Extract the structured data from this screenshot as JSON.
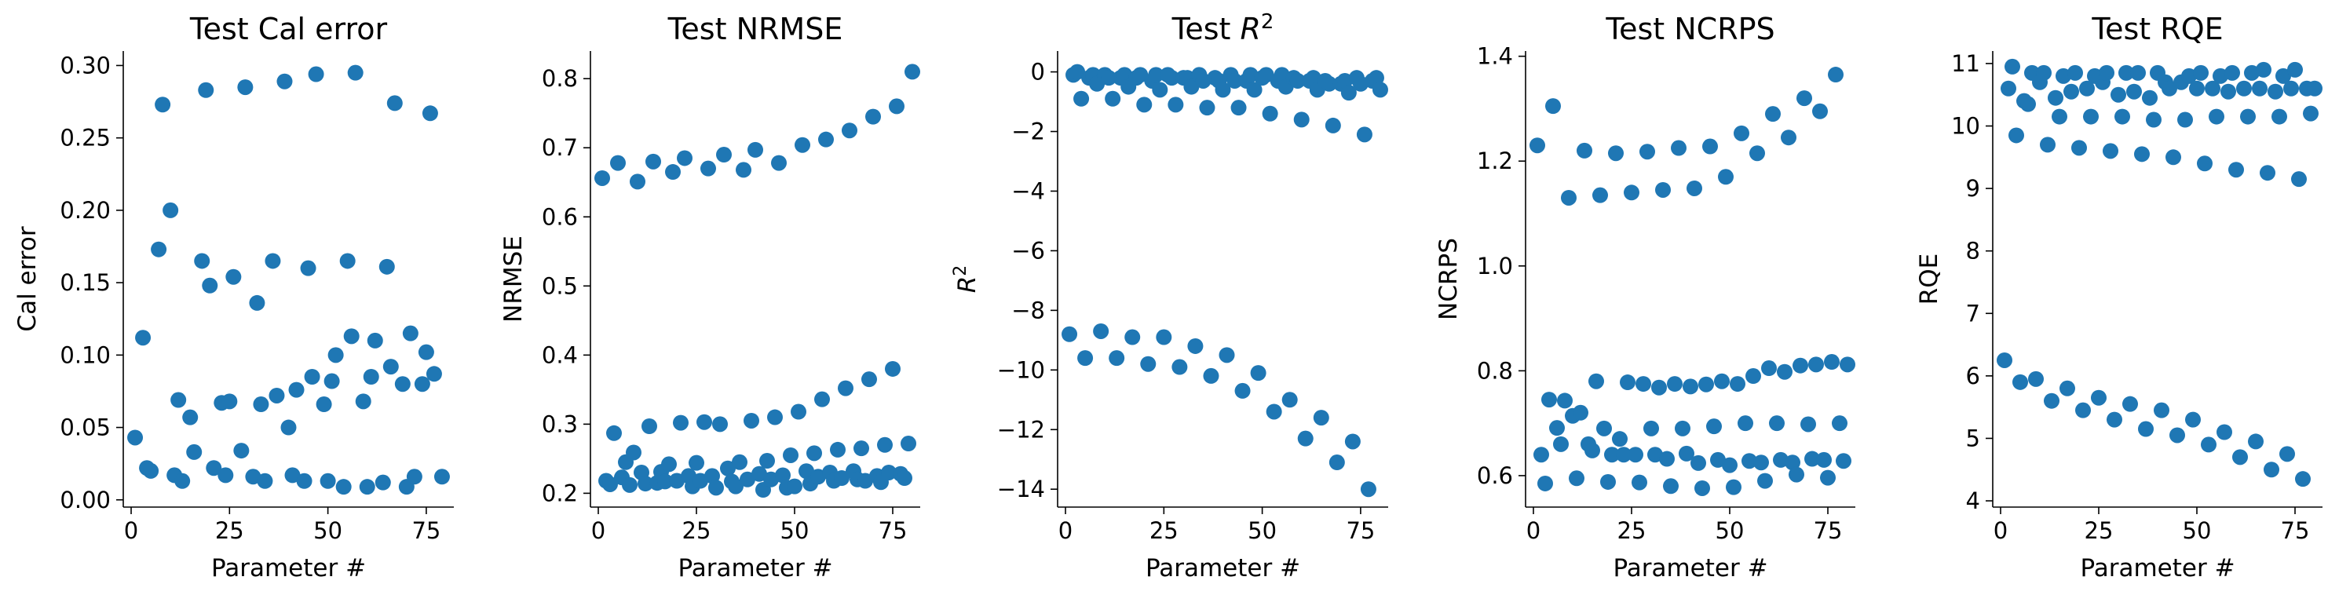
{
  "marker_color": "#1f77b4",
  "chart_data": [
    {
      "type": "scatter",
      "title": "Test Cal error",
      "xlabel": "Parameter #",
      "ylabel": "Cal error",
      "xlim": [
        -2,
        82
      ],
      "ylim": [
        -0.005,
        0.31
      ],
      "xticks": [
        0,
        25,
        50,
        75
      ],
      "xtick_labels": [
        "0",
        "25",
        "50",
        "75"
      ],
      "yticks": [
        0.0,
        0.05,
        0.1,
        0.15,
        0.2,
        0.25,
        0.3
      ],
      "ytick_labels": [
        "0.00",
        "0.05",
        "0.10",
        "0.15",
        "0.20",
        "0.25",
        "0.30"
      ],
      "series": [
        {
          "x": [
            1,
            3,
            4,
            5,
            7,
            8,
            10,
            11,
            12,
            13,
            15,
            16,
            18,
            19,
            20,
            21,
            23,
            24,
            25,
            26,
            28,
            29,
            31,
            32,
            33,
            34,
            36,
            37,
            39,
            40,
            41,
            42,
            44,
            45,
            46,
            47,
            49,
            50,
            51,
            52,
            54,
            55,
            56,
            57,
            59,
            60,
            61,
            62,
            64,
            65,
            66,
            67,
            69,
            70,
            71,
            72,
            74,
            75,
            76,
            77,
            79
          ],
          "y": [
            0.043,
            0.112,
            0.022,
            0.02,
            0.173,
            0.273,
            0.2,
            0.017,
            0.069,
            0.013,
            0.057,
            0.033,
            0.165,
            0.283,
            0.148,
            0.022,
            0.067,
            0.017,
            0.068,
            0.154,
            0.034,
            0.285,
            0.016,
            0.136,
            0.066,
            0.013,
            0.165,
            0.072,
            0.289,
            0.05,
            0.017,
            0.076,
            0.013,
            0.16,
            0.085,
            0.294,
            0.066,
            0.013,
            0.082,
            0.1,
            0.009,
            0.165,
            0.113,
            0.295,
            0.068,
            0.009,
            0.085,
            0.11,
            0.012,
            0.161,
            0.092,
            0.274,
            0.08,
            0.009,
            0.115,
            0.016,
            0.08,
            0.102,
            0.267,
            0.087,
            0.016
          ]
        }
      ]
    },
    {
      "type": "scatter",
      "title": "Test NRMSE",
      "xlabel": "Parameter #",
      "ylabel": "NRMSE",
      "xlim": [
        -2,
        82
      ],
      "ylim": [
        0.18,
        0.84
      ],
      "xticks": [
        0,
        25,
        50,
        75
      ],
      "xtick_labels": [
        "0",
        "25",
        "50",
        "75"
      ],
      "yticks": [
        0.2,
        0.3,
        0.4,
        0.5,
        0.6,
        0.7,
        0.8
      ],
      "ytick_labels": [
        "0.2",
        "0.3",
        "0.4",
        "0.5",
        "0.6",
        "0.7",
        "0.8"
      ],
      "series": [
        {
          "x": [
            1,
            2,
            3,
            4,
            5,
            6,
            7,
            8,
            9,
            10,
            11,
            12,
            13,
            14,
            15,
            16,
            17,
            18,
            19,
            20,
            21,
            22,
            23,
            24,
            25,
            26,
            27,
            28,
            29,
            30,
            31,
            32,
            33,
            34,
            35,
            36,
            37,
            38,
            39,
            40,
            41,
            42,
            43,
            44,
            45,
            46,
            47,
            48,
            49,
            50,
            51,
            52,
            53,
            54,
            55,
            56,
            57,
            58,
            59,
            60,
            61,
            62,
            63,
            64,
            65,
            66,
            67,
            68,
            69,
            70,
            71,
            72,
            73,
            74,
            75,
            76,
            77,
            78,
            79,
            80
          ],
          "y": [
            0.656,
            0.218,
            0.213,
            0.287,
            0.678,
            0.223,
            0.245,
            0.212,
            0.259,
            0.651,
            0.23,
            0.214,
            0.297,
            0.68,
            0.215,
            0.231,
            0.217,
            0.242,
            0.665,
            0.218,
            0.302,
            0.685,
            0.225,
            0.21,
            0.244,
            0.218,
            0.303,
            0.67,
            0.225,
            0.208,
            0.3,
            0.69,
            0.236,
            0.217,
            0.21,
            0.245,
            0.668,
            0.22,
            0.305,
            0.697,
            0.228,
            0.205,
            0.247,
            0.22,
            0.31,
            0.678,
            0.226,
            0.208,
            0.255,
            0.21,
            0.318,
            0.704,
            0.232,
            0.214,
            0.258,
            0.224,
            0.336,
            0.712,
            0.23,
            0.218,
            0.263,
            0.222,
            0.352,
            0.725,
            0.232,
            0.22,
            0.265,
            0.218,
            0.365,
            0.745,
            0.225,
            0.216,
            0.27,
            0.23,
            0.38,
            0.76,
            0.228,
            0.222,
            0.272,
            0.81
          ]
        }
      ]
    },
    {
      "type": "scatter",
      "title": "Test R²",
      "title_html": "Test <i>R</i>²",
      "xlabel": "Parameter #",
      "ylabel": "R²",
      "xlim": [
        -2,
        82
      ],
      "ylim": [
        -14.6,
        0.7
      ],
      "xticks": [
        0,
        25,
        50,
        75
      ],
      "xtick_labels": [
        "0",
        "25",
        "50",
        "75"
      ],
      "yticks": [
        -14,
        -12,
        -10,
        -8,
        -6,
        -4,
        -2,
        0
      ],
      "ytick_labels": [
        "−14",
        "−12",
        "−10",
        "−8",
        "−6",
        "−4",
        "−2",
        "0"
      ],
      "series": [
        {
          "x": [
            1,
            2,
            3,
            4,
            5,
            6,
            7,
            8,
            9,
            10,
            11,
            12,
            13,
            14,
            15,
            16,
            17,
            18,
            19,
            20,
            21,
            22,
            23,
            24,
            25,
            26,
            27,
            28,
            29,
            30,
            31,
            32,
            33,
            34,
            35,
            36,
            37,
            38,
            39,
            40,
            41,
            42,
            43,
            44,
            45,
            46,
            47,
            48,
            49,
            50,
            51,
            52,
            53,
            54,
            55,
            56,
            57,
            58,
            59,
            60,
            61,
            62,
            63,
            64,
            65,
            66,
            67,
            68,
            69,
            70,
            71,
            72,
            73,
            74,
            75,
            76,
            77,
            78,
            79,
            80
          ],
          "y": [
            -8.8,
            -0.1,
            0.0,
            -0.9,
            -9.6,
            -0.2,
            -0.1,
            -0.4,
            -8.7,
            -0.1,
            -0.2,
            -0.9,
            -9.6,
            -0.2,
            -0.1,
            -0.5,
            -8.9,
            -0.2,
            -0.1,
            -1.1,
            -9.8,
            -0.3,
            -0.1,
            -0.6,
            -8.9,
            -0.1,
            -0.2,
            -1.1,
            -9.9,
            -0.2,
            -0.2,
            -0.5,
            -9.2,
            -0.1,
            -0.3,
            -1.2,
            -10.2,
            -0.2,
            -0.3,
            -0.6,
            -9.5,
            -0.1,
            -0.3,
            -1.2,
            -10.7,
            -0.3,
            -0.1,
            -0.6,
            -10.1,
            -0.2,
            -0.1,
            -1.4,
            -11.4,
            -0.3,
            -0.1,
            -0.5,
            -11.0,
            -0.2,
            -0.3,
            -1.6,
            -12.3,
            -0.3,
            -0.2,
            -0.6,
            -11.6,
            -0.3,
            -0.4,
            -1.8,
            -13.1,
            -0.4,
            -0.3,
            -0.7,
            -12.4,
            -0.2,
            -0.4,
            -2.1,
            -14.0,
            -0.3,
            -0.2,
            -0.6
          ]
        }
      ]
    },
    {
      "type": "scatter",
      "title": "Test NCRPS",
      "xlabel": "Parameter #",
      "ylabel": "NCRPS",
      "xlim": [
        -2,
        82
      ],
      "ylim": [
        0.54,
        1.41
      ],
      "xticks": [
        0,
        25,
        50,
        75
      ],
      "xtick_labels": [
        "0",
        "25",
        "50",
        "75"
      ],
      "yticks": [
        0.6,
        0.8,
        1.0,
        1.2,
        1.4
      ],
      "ytick_labels": [
        "0.6",
        "0.8",
        "1.0",
        "1.2",
        "1.4"
      ],
      "series": [
        {
          "x": [
            1,
            2,
            3,
            4,
            5,
            6,
            7,
            8,
            9,
            10,
            11,
            12,
            13,
            14,
            15,
            16,
            17,
            18,
            19,
            20,
            21,
            22,
            23,
            24,
            25,
            26,
            27,
            28,
            29,
            30,
            31,
            32,
            33,
            34,
            35,
            36,
            37,
            38,
            39,
            40,
            41,
            42,
            43,
            44,
            45,
            46,
            47,
            48,
            49,
            50,
            51,
            52,
            53,
            54,
            55,
            56,
            57,
            58,
            59,
            60,
            61,
            62,
            63,
            64,
            65,
            66,
            67,
            68,
            69,
            70,
            71,
            72,
            73,
            74,
            75,
            76,
            77,
            78,
            79,
            80
          ],
          "y": [
            1.23,
            0.64,
            0.585,
            0.745,
            1.305,
            0.691,
            0.66,
            0.743,
            1.13,
            0.714,
            0.595,
            0.72,
            1.22,
            0.66,
            0.648,
            0.78,
            1.135,
            0.69,
            0.588,
            0.64,
            1.215,
            0.67,
            0.64,
            0.778,
            1.14,
            0.64,
            0.587,
            0.775,
            1.218,
            0.69,
            0.64,
            0.768,
            1.145,
            0.632,
            0.58,
            0.775,
            1.225,
            0.69,
            0.642,
            0.77,
            1.148,
            0.624,
            0.576,
            0.774,
            1.228,
            0.694,
            0.63,
            0.78,
            1.17,
            0.62,
            0.578,
            0.775,
            1.253,
            0.7,
            0.628,
            0.79,
            1.215,
            0.625,
            0.59,
            0.805,
            1.29,
            0.7,
            0.63,
            0.798,
            1.245,
            0.625,
            0.602,
            0.81,
            1.32,
            0.698,
            0.632,
            0.812,
            1.295,
            0.63,
            0.596,
            0.817,
            1.365,
            0.7,
            0.628,
            0.812
          ]
        }
      ]
    },
    {
      "type": "scatter",
      "title": "Test RQE",
      "xlabel": "Parameter #",
      "ylabel": "RQE",
      "xlim": [
        -2,
        82
      ],
      "ylim": [
        3.9,
        11.2
      ],
      "xticks": [
        0,
        25,
        50,
        75
      ],
      "xtick_labels": [
        "0",
        "25",
        "50",
        "75"
      ],
      "yticks": [
        4,
        5,
        6,
        7,
        8,
        9,
        10,
        11
      ],
      "ytick_labels": [
        "4",
        "5",
        "6",
        "7",
        "8",
        "9",
        "10",
        "11"
      ],
      "series": [
        {
          "x": [
            1,
            2,
            3,
            4,
            5,
            6,
            7,
            8,
            9,
            10,
            11,
            12,
            13,
            14,
            15,
            16,
            17,
            18,
            19,
            20,
            21,
            22,
            23,
            24,
            25,
            26,
            27,
            28,
            29,
            30,
            31,
            32,
            33,
            34,
            35,
            36,
            37,
            38,
            39,
            40,
            41,
            42,
            43,
            44,
            45,
            46,
            47,
            48,
            49,
            50,
            51,
            52,
            53,
            54,
            55,
            56,
            57,
            58,
            59,
            60,
            61,
            62,
            63,
            64,
            65,
            66,
            67,
            68,
            69,
            70,
            71,
            72,
            73,
            74,
            75,
            76,
            77,
            78,
            79,
            80
          ],
          "y": [
            6.25,
            10.6,
            10.95,
            9.85,
            5.9,
            10.4,
            10.35,
            10.85,
            5.95,
            10.7,
            10.85,
            9.7,
            5.6,
            10.45,
            10.15,
            10.8,
            5.8,
            10.55,
            10.85,
            9.65,
            5.45,
            10.6,
            10.15,
            10.8,
            5.65,
            10.7,
            10.85,
            9.6,
            5.3,
            10.5,
            10.15,
            10.85,
            5.55,
            10.55,
            10.85,
            9.55,
            5.15,
            10.45,
            10.1,
            10.85,
            5.45,
            10.7,
            10.6,
            9.5,
            5.05,
            10.7,
            10.1,
            10.8,
            5.3,
            10.6,
            10.85,
            9.4,
            4.9,
            10.6,
            10.15,
            10.8,
            5.1,
            10.55,
            10.85,
            9.3,
            4.7,
            10.6,
            10.15,
            10.85,
            4.95,
            10.6,
            10.9,
            9.25,
            4.5,
            10.55,
            10.15,
            10.8,
            4.75,
            10.6,
            10.9,
            9.15,
            4.35,
            10.6,
            10.2,
            10.6
          ]
        }
      ]
    }
  ]
}
